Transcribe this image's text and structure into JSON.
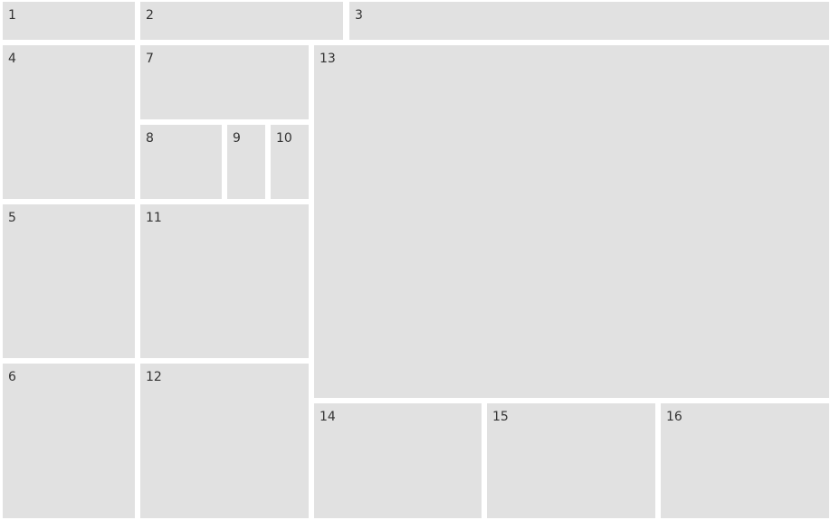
{
  "tiles": [
    {
      "label": "1"
    },
    {
      "label": "2"
    },
    {
      "label": "3"
    },
    {
      "label": "4"
    },
    {
      "label": "5"
    },
    {
      "label": "6"
    },
    {
      "label": "7"
    },
    {
      "label": "8"
    },
    {
      "label": "9"
    },
    {
      "label": "10"
    },
    {
      "label": "11"
    },
    {
      "label": "12"
    },
    {
      "label": "13"
    },
    {
      "label": "14"
    },
    {
      "label": "15"
    },
    {
      "label": "16"
    }
  ],
  "colors": {
    "tile_background": "#e1e1e1",
    "tile_text": "#333333",
    "gutter": "#ffffff"
  }
}
